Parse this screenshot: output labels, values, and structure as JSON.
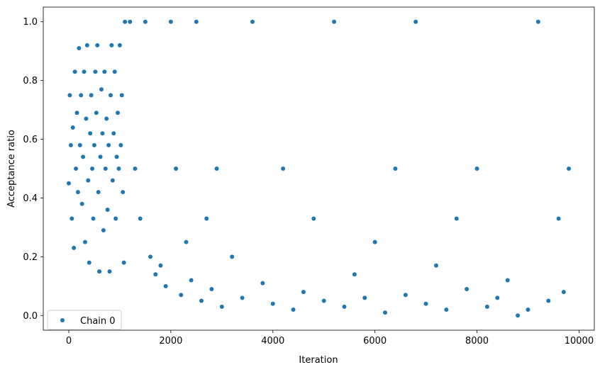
{
  "chart_data": {
    "type": "scatter",
    "xlabel": "Iteration",
    "ylabel": "Acceptance ratio",
    "xlim": [
      -500,
      10300
    ],
    "ylim": [
      -0.05,
      1.05
    ],
    "xticks": [
      0,
      2000,
      4000,
      6000,
      8000,
      10000
    ],
    "xtick_labels": [
      "0",
      "2000",
      "4000",
      "6000",
      "8000",
      "10000"
    ],
    "yticks": [
      0.0,
      0.2,
      0.4,
      0.6,
      0.8,
      1.0
    ],
    "ytick_labels": [
      "0.0",
      "0.2",
      "0.4",
      "0.6",
      "0.8",
      "1.0"
    ],
    "grid": false,
    "legend_position": "lower-left",
    "series": [
      {
        "name": "Chain 0",
        "color": "#1f77b4",
        "marker": "circle",
        "points": [
          [
            0,
            0.45
          ],
          [
            20,
            0.75
          ],
          [
            40,
            0.58
          ],
          [
            60,
            0.33
          ],
          [
            80,
            0.64
          ],
          [
            100,
            0.23
          ],
          [
            120,
            0.83
          ],
          [
            140,
            0.5
          ],
          [
            160,
            0.69
          ],
          [
            180,
            0.42
          ],
          [
            200,
            0.91
          ],
          [
            220,
            0.58
          ],
          [
            240,
            0.75
          ],
          [
            260,
            0.38
          ],
          [
            280,
            0.54
          ],
          [
            300,
            0.83
          ],
          [
            320,
            0.25
          ],
          [
            340,
            0.67
          ],
          [
            360,
            0.92
          ],
          [
            380,
            0.46
          ],
          [
            400,
            0.18
          ],
          [
            420,
            0.62
          ],
          [
            440,
            0.75
          ],
          [
            460,
            0.5
          ],
          [
            480,
            0.33
          ],
          [
            500,
            0.58
          ],
          [
            520,
            0.83
          ],
          [
            540,
            0.69
          ],
          [
            560,
            0.92
          ],
          [
            580,
            0.42
          ],
          [
            600,
            0.15
          ],
          [
            620,
            0.54
          ],
          [
            640,
            0.77
          ],
          [
            660,
            0.62
          ],
          [
            680,
            0.29
          ],
          [
            700,
            0.83
          ],
          [
            720,
            0.5
          ],
          [
            740,
            0.67
          ],
          [
            760,
            0.36
          ],
          [
            780,
            0.58
          ],
          [
            800,
            0.15
          ],
          [
            820,
            0.75
          ],
          [
            840,
            0.92
          ],
          [
            860,
            0.46
          ],
          [
            880,
            0.62
          ],
          [
            900,
            0.83
          ],
          [
            920,
            0.33
          ],
          [
            940,
            0.54
          ],
          [
            960,
            0.69
          ],
          [
            980,
            0.5
          ],
          [
            1000,
            0.92
          ],
          [
            1020,
            0.58
          ],
          [
            1040,
            0.75
          ],
          [
            1060,
            0.42
          ],
          [
            1080,
            0.18
          ],
          [
            1100,
            1.0
          ],
          [
            1200,
            1.0
          ],
          [
            1300,
            0.5
          ],
          [
            1400,
            0.33
          ],
          [
            1500,
            1.0
          ],
          [
            1600,
            0.2
          ],
          [
            1700,
            0.14
          ],
          [
            1800,
            0.17
          ],
          [
            1900,
            0.1
          ],
          [
            2000,
            1.0
          ],
          [
            2100,
            0.5
          ],
          [
            2200,
            0.07
          ],
          [
            2300,
            0.25
          ],
          [
            2400,
            0.12
          ],
          [
            2500,
            1.0
          ],
          [
            2600,
            0.05
          ],
          [
            2700,
            0.33
          ],
          [
            2800,
            0.09
          ],
          [
            2900,
            0.5
          ],
          [
            3000,
            0.03
          ],
          [
            3200,
            0.2
          ],
          [
            3400,
            0.06
          ],
          [
            3600,
            1.0
          ],
          [
            3800,
            0.11
          ],
          [
            4000,
            0.04
          ],
          [
            4200,
            0.5
          ],
          [
            4400,
            0.02
          ],
          [
            4600,
            0.08
          ],
          [
            4800,
            0.33
          ],
          [
            5000,
            0.05
          ],
          [
            5200,
            1.0
          ],
          [
            5400,
            0.03
          ],
          [
            5600,
            0.14
          ],
          [
            5800,
            0.06
          ],
          [
            6000,
            0.25
          ],
          [
            6200,
            0.01
          ],
          [
            6400,
            0.5
          ],
          [
            6600,
            0.07
          ],
          [
            6800,
            1.0
          ],
          [
            7000,
            0.04
          ],
          [
            7200,
            0.17
          ],
          [
            7400,
            0.02
          ],
          [
            7600,
            0.33
          ],
          [
            7800,
            0.09
          ],
          [
            8000,
            0.5
          ],
          [
            8200,
            0.03
          ],
          [
            8400,
            0.06
          ],
          [
            8600,
            0.12
          ],
          [
            8800,
            0.0
          ],
          [
            9000,
            0.02
          ],
          [
            9200,
            1.0
          ],
          [
            9400,
            0.05
          ],
          [
            9600,
            0.33
          ],
          [
            9700,
            0.08
          ],
          [
            9800,
            0.5
          ]
        ]
      }
    ]
  }
}
